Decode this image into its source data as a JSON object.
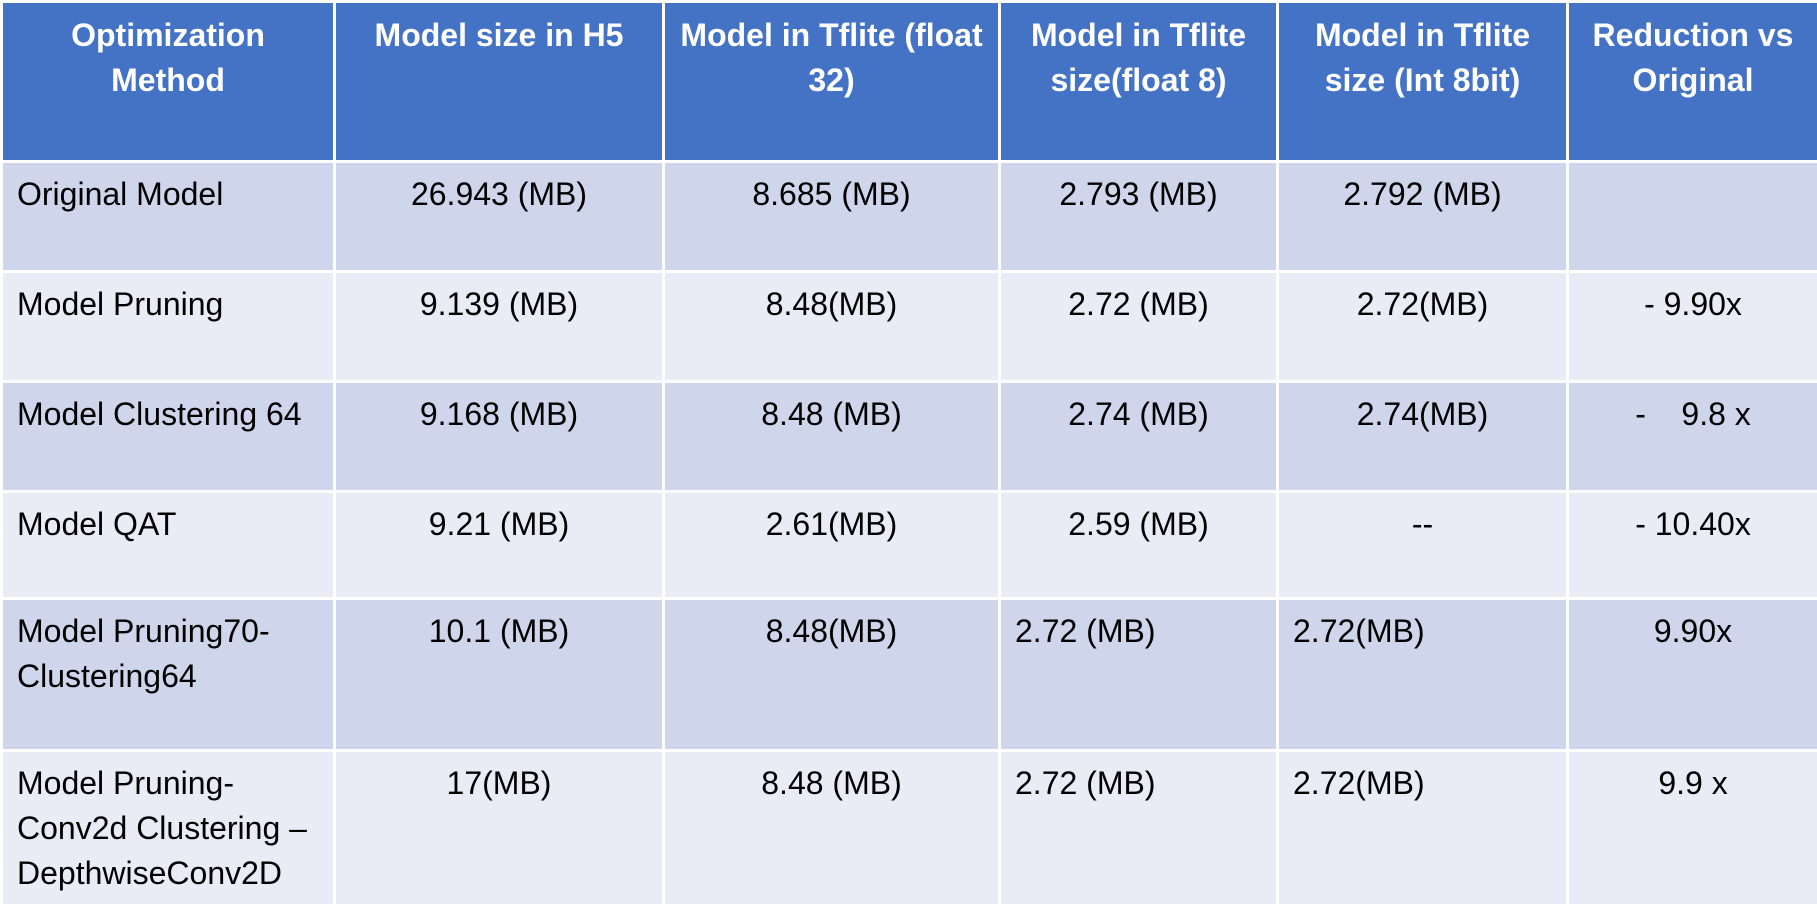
{
  "table": {
    "headers": [
      "Optimization Method",
      "Model size in H5",
      "Model in Tflite (float 32)",
      "Model in Tflite size(float 8)",
      "Model in Tflite size (Int 8bit)",
      "Reduction vs Original"
    ],
    "rows": [
      [
        "Original Model",
        "26.943 (MB)",
        "8.685 (MB)",
        "2.793 (MB)",
        "2.792 (MB)",
        ""
      ],
      [
        "Model Pruning",
        "9.139 (MB)",
        "8.48(MB)",
        "2.72 (MB)",
        "2.72(MB)",
        "- 9.90x"
      ],
      [
        "Model Clustering 64",
        "9.168 (MB)",
        "8.48 (MB)",
        "2.74 (MB)",
        "2.74(MB)",
        "-    9.8 x"
      ],
      [
        "Model QAT",
        "9.21 (MB)",
        "2.61(MB)",
        "2.59 (MB)",
        "--",
        "- 10.40x"
      ],
      [
        "Model Pruning70-Clustering64",
        "10.1 (MB)",
        "8.48(MB)",
        "2.72 (MB)",
        "2.72(MB)",
        "9.90x"
      ],
      [
        "Model Pruning-Conv2d Clustering –DepthwiseConv2D",
        "17(MB)",
        "8.48 (MB)",
        "2.72 (MB)",
        "2.72(MB)",
        "9.9 x"
      ]
    ]
  }
}
